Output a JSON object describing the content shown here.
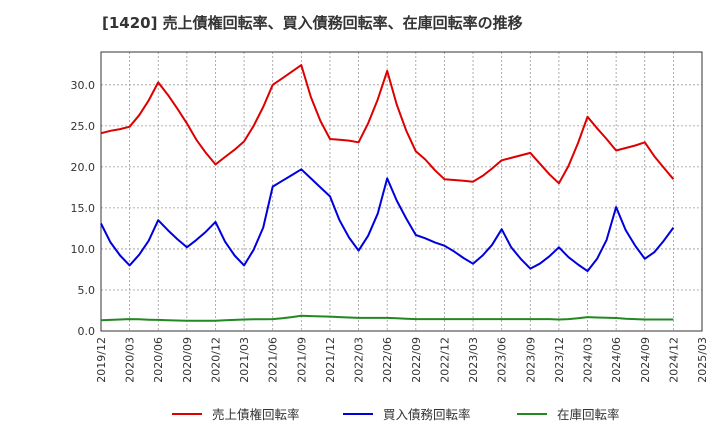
{
  "chart_data": {
    "type": "line",
    "title": "[1420]  売上債権回転率、買入債務回転率、在庫回転率の推移",
    "xlabel": "",
    "ylabel": "",
    "ylim": [
      0,
      34
    ],
    "y_ticks": [
      "0.0",
      "5.0",
      "10.0",
      "15.0",
      "20.0",
      "25.0",
      "30.0"
    ],
    "y_tick_values": [
      0,
      5,
      10,
      15,
      20,
      25,
      30
    ],
    "x_ticks": [
      "2019/12",
      "2020/03",
      "2020/06",
      "2020/09",
      "2020/12",
      "2021/03",
      "2021/06",
      "2021/09",
      "2021/12",
      "2022/03",
      "2022/06",
      "2022/09",
      "2022/12",
      "2023/03",
      "2023/06",
      "2023/09",
      "2023/12",
      "2024/03",
      "2024/06",
      "2024/09",
      "2024/12",
      "2025/03"
    ],
    "x": [
      "2019/12",
      "2020/01",
      "2020/02",
      "2020/03",
      "2020/04",
      "2020/05",
      "2020/06",
      "2020/07",
      "2020/08",
      "2020/09",
      "2020/10",
      "2020/11",
      "2020/12",
      "2021/01",
      "2021/02",
      "2021/03",
      "2021/04",
      "2021/05",
      "2021/06",
      "2021/07",
      "2021/08",
      "2021/09",
      "2021/10",
      "2021/11",
      "2021/12",
      "2022/01",
      "2022/02",
      "2022/03",
      "2022/04",
      "2022/05",
      "2022/06",
      "2022/07",
      "2022/08",
      "2022/09",
      "2022/10",
      "2022/11",
      "2022/12",
      "2023/01",
      "2023/02",
      "2023/03",
      "2023/04",
      "2023/05",
      "2023/06",
      "2023/07",
      "2023/08",
      "2023/09",
      "2023/10",
      "2023/11",
      "2023/12",
      "2024/01",
      "2024/02",
      "2024/03",
      "2024/04",
      "2024/05",
      "2024/06",
      "2024/07",
      "2024/08",
      "2024/09",
      "2024/10",
      "2024/11",
      "2024/12"
    ],
    "series": [
      {
        "name": "売上債権回転率",
        "color": "#dd0000",
        "values": [
          24.1,
          24.4,
          24.6,
          24.9,
          26.3,
          28.1,
          30.3,
          28.8,
          27.1,
          25.3,
          23.3,
          21.7,
          20.3,
          21.2,
          22.1,
          23.1,
          25.0,
          27.3,
          30.0,
          30.8,
          31.6,
          32.4,
          28.5,
          25.6,
          23.4,
          23.3,
          23.2,
          23.0,
          25.3,
          28.2,
          31.7,
          27.6,
          24.4,
          21.9,
          20.9,
          19.6,
          18.5,
          18.4,
          18.3,
          18.2,
          18.9,
          19.8,
          20.8,
          21.1,
          21.4,
          21.7,
          20.4,
          19.1,
          18.0,
          20.1,
          22.9,
          26.1,
          24.7,
          23.4,
          22.0,
          22.3,
          22.6,
          23.0,
          21.3,
          19.9,
          18.5
        ]
      },
      {
        "name": "買入債務回転率",
        "color": "#0000dd",
        "values": [
          13.1,
          10.8,
          9.2,
          8.0,
          9.3,
          11.0,
          13.5,
          12.3,
          11.2,
          10.2,
          11.1,
          12.1,
          13.3,
          10.9,
          9.2,
          8.0,
          9.9,
          12.6,
          17.6,
          18.3,
          19.0,
          19.7,
          18.6,
          17.5,
          16.4,
          13.5,
          11.4,
          9.8,
          11.6,
          14.3,
          18.6,
          15.9,
          13.7,
          11.7,
          11.3,
          10.8,
          10.4,
          9.7,
          8.9,
          8.2,
          9.2,
          10.5,
          12.4,
          10.2,
          8.8,
          7.6,
          8.2,
          9.1,
          10.2,
          9.0,
          8.1,
          7.3,
          8.8,
          11.1,
          15.1,
          12.3,
          10.4,
          8.8,
          9.6,
          11.0,
          12.6
        ]
      },
      {
        "name": "在庫回転率",
        "color": "#228822",
        "values": [
          1.3,
          1.35,
          1.4,
          1.45,
          1.42,
          1.38,
          1.35,
          1.32,
          1.28,
          1.25,
          1.25,
          1.25,
          1.25,
          1.3,
          1.35,
          1.4,
          1.42,
          1.44,
          1.45,
          1.55,
          1.7,
          1.85,
          1.82,
          1.78,
          1.75,
          1.7,
          1.65,
          1.6,
          1.6,
          1.6,
          1.6,
          1.55,
          1.5,
          1.45,
          1.45,
          1.45,
          1.45,
          1.45,
          1.45,
          1.45,
          1.45,
          1.45,
          1.45,
          1.45,
          1.45,
          1.45,
          1.45,
          1.45,
          1.4,
          1.45,
          1.55,
          1.7,
          1.65,
          1.62,
          1.58,
          1.5,
          1.45,
          1.4,
          1.4,
          1.4,
          1.4
        ]
      }
    ],
    "legend_position": "bottom",
    "grid": true
  }
}
